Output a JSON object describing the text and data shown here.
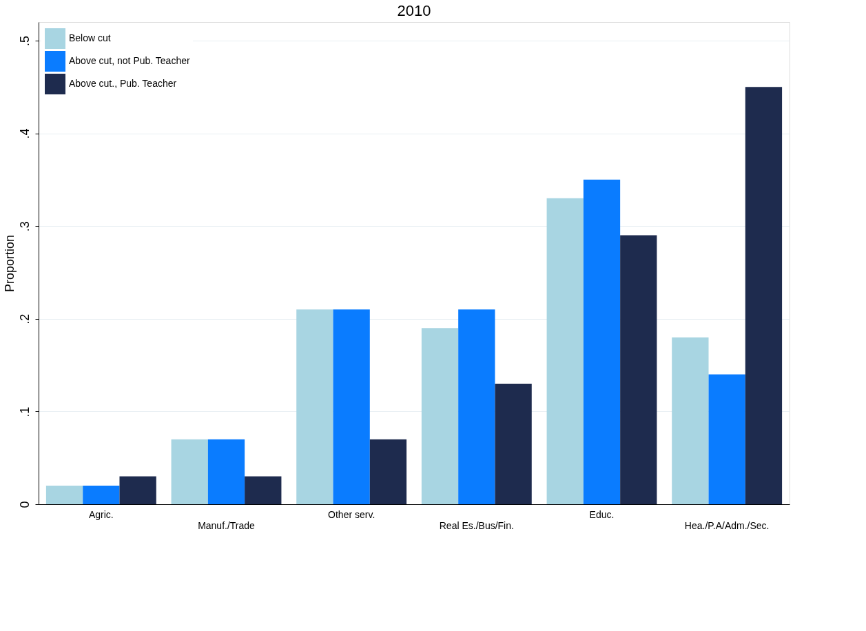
{
  "chart_data": {
    "type": "bar",
    "title": "2010",
    "ylabel": "Proportion",
    "categories": [
      "Agric.",
      "Manuf./Trade",
      "Other serv.",
      "Real Es./Bus/Fin.",
      "Educ.",
      "Hea./P.A/Adm./Sec."
    ],
    "series": [
      {
        "name": "Below cut",
        "color": "#a8d5e2",
        "values": [
          0.02,
          0.07,
          0.21,
          0.19,
          0.33,
          0.18
        ]
      },
      {
        "name": "Above cut, not Pub. Teacher",
        "color": "#0a7cff",
        "values": [
          0.02,
          0.07,
          0.21,
          0.21,
          0.35,
          0.14
        ]
      },
      {
        "name": "Above cut., Pub. Teacher",
        "color": "#1e2b4e",
        "values": [
          0.03,
          0.03,
          0.07,
          0.13,
          0.29,
          0.45
        ]
      }
    ],
    "ylim": [
      0,
      0.52
    ],
    "yticks": [
      {
        "value": 0,
        "label": "0"
      },
      {
        "value": 0.1,
        "label": ".1"
      },
      {
        "value": 0.2,
        "label": ".2"
      },
      {
        "value": 0.3,
        "label": ".3"
      },
      {
        "value": 0.4,
        "label": ".4"
      },
      {
        "value": 0.5,
        "label": ".5"
      }
    ],
    "grid": "y",
    "legend": "top left"
  }
}
